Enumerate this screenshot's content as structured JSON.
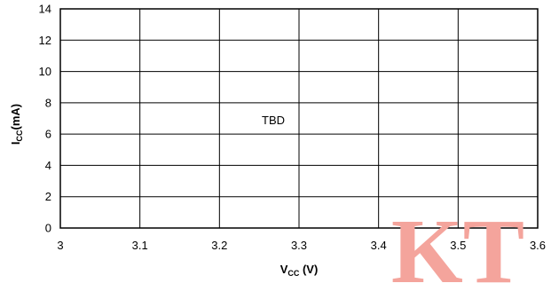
{
  "chart_data": {
    "type": "line",
    "series": [],
    "x_ticks": [
      "3",
      "3.1",
      "3.2",
      "3.3",
      "3.4",
      "3.5",
      "3.6"
    ],
    "y_ticks": [
      "0",
      "2",
      "4",
      "6",
      "8",
      "10",
      "12",
      "14"
    ],
    "xlim": [
      3,
      3.6
    ],
    "ylim": [
      0,
      14
    ],
    "xlabel": {
      "main": "V",
      "sub": "CC",
      "tail": " (V)"
    },
    "ylabel": {
      "main": "I",
      "sub": "CC",
      "tail": "(mA)"
    },
    "grid": true,
    "annotation": "TBD"
  },
  "watermark": "KT",
  "colors": {
    "grid": "#000000",
    "watermark": "#f4a49c"
  }
}
